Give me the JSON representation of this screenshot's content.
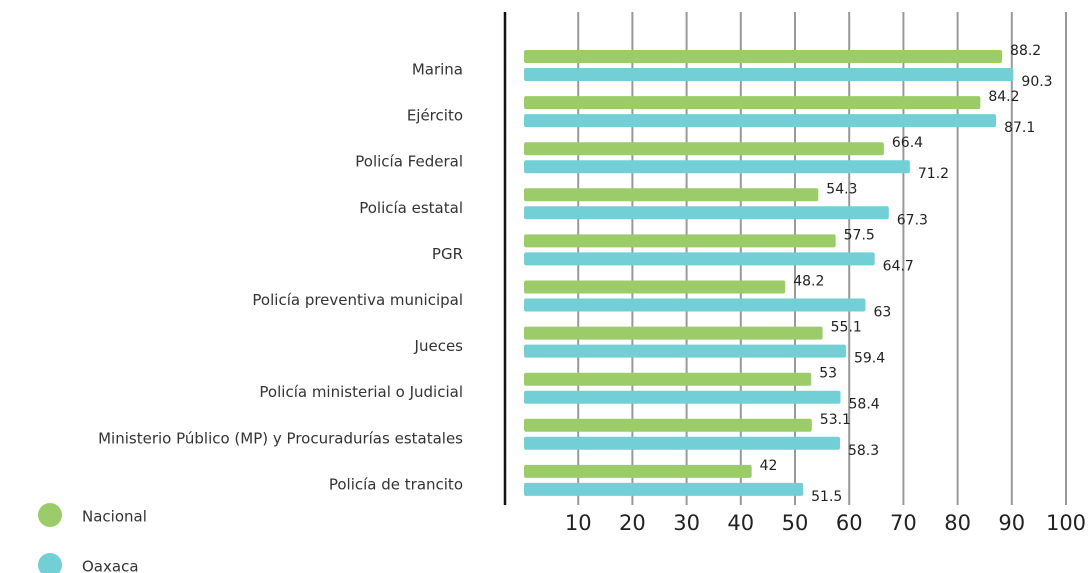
{
  "chart_data": {
    "type": "bar",
    "orientation": "horizontal",
    "categories": [
      "Marina",
      "Ejército",
      "Policía Federal",
      "Policía estatal",
      "PGR",
      "Policía preventiva municipal",
      "Jueces",
      "Policía ministerial o Judicial",
      "Ministerio Público (MP) y Procuradurías estatales",
      "Policía de trancito"
    ],
    "series": [
      {
        "name": "Nacional",
        "color": "#9ccc6a",
        "values": [
          88.2,
          84.2,
          66.4,
          54.3,
          57.5,
          48.2,
          55.1,
          53,
          53.1,
          42
        ]
      },
      {
        "name": "Oaxaca",
        "color": "#72cfd6",
        "values": [
          90.3,
          87.1,
          71.2,
          67.3,
          64.7,
          63,
          59.4,
          58.4,
          58.3,
          51.5
        ]
      }
    ],
    "xlim": [
      0,
      100
    ],
    "xticks": [
      10,
      20,
      30,
      40,
      50,
      60,
      70,
      80,
      90,
      100
    ],
    "grid": true,
    "legend": "bottom-left"
  }
}
